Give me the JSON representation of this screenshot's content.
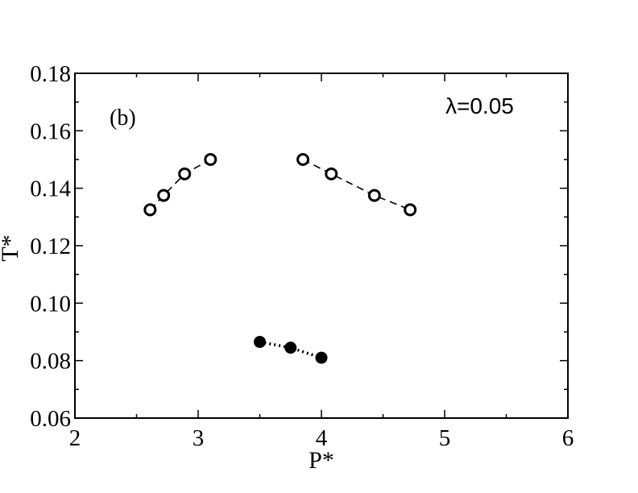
{
  "chart_data": {
    "type": "scatter",
    "title": "",
    "xlabel": "P*",
    "ylabel": "T*",
    "xlim": [
      2,
      6
    ],
    "ylim": [
      0.06,
      0.18
    ],
    "x_ticks": [
      "2",
      "3",
      "4",
      "5",
      "6"
    ],
    "y_ticks": [
      "0.06",
      "0.08",
      "0.10",
      "0.12",
      "0.14",
      "0.16",
      "0.18"
    ],
    "annotations": {
      "panel": "(b)",
      "param": "λ=0.05"
    },
    "grid": false,
    "series": [
      {
        "marker": "open-circle",
        "line": "dashed",
        "color": "#000000",
        "points": [
          [
            2.61,
            0.1325
          ],
          [
            2.72,
            0.1375
          ],
          [
            2.89,
            0.145
          ],
          [
            3.1,
            0.15
          ]
        ]
      },
      {
        "marker": "open-circle",
        "line": "dashed",
        "color": "#000000",
        "points": [
          [
            3.85,
            0.15
          ],
          [
            4.08,
            0.145
          ],
          [
            4.43,
            0.1375
          ],
          [
            4.72,
            0.1325
          ]
        ]
      },
      {
        "marker": "filled-circle",
        "line": "dotted",
        "color": "#000000",
        "points": [
          [
            3.5,
            0.0865
          ],
          [
            3.75,
            0.0845
          ],
          [
            4.0,
            0.081
          ]
        ]
      }
    ]
  }
}
